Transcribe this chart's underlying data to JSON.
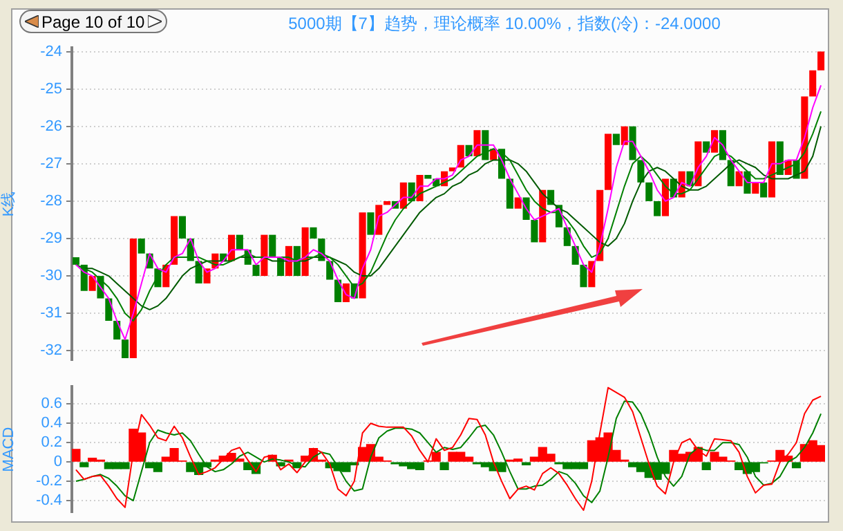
{
  "chart_data": [
    {
      "type": "candlestick",
      "title": "5000期【7】趋势，理论概率 10.00%，指数(冷)：-24.0000",
      "ylabel": "K线",
      "annotations": [
        "Page 10 of 10"
      ],
      "categories": [
        null,
        null,
        null,
        null,
        null,
        null,
        null,
        null,
        null,
        null,
        null,
        null,
        null,
        null,
        null,
        null,
        null,
        null,
        null,
        null,
        null,
        null,
        null,
        null,
        null,
        null,
        null,
        null,
        null,
        null,
        null,
        null,
        null,
        null,
        null,
        null,
        null,
        null,
        null,
        null,
        null,
        null,
        null,
        null,
        null,
        null,
        null,
        null,
        null,
        null,
        null,
        null,
        null,
        null,
        null,
        null,
        null,
        null,
        null,
        null,
        null,
        null,
        null,
        null,
        null,
        null,
        null,
        null,
        null,
        null,
        null,
        null,
        null,
        null,
        null,
        null,
        null,
        null,
        null,
        null,
        null,
        null,
        null,
        null,
        null,
        null,
        null,
        null,
        null,
        null,
        null,
        null
      ],
      "ohlc": [
        [
          -29.5,
          -29.5,
          -29.7,
          -29.7
        ],
        [
          -29.7,
          -29.7,
          -30.4,
          -30.4
        ],
        [
          -30.4,
          -30.0,
          -30.4,
          -30.0
        ],
        [
          -30.0,
          -30.0,
          -30.6,
          -30.6
        ],
        [
          -30.6,
          -30.6,
          -31.2,
          -31.2
        ],
        [
          -31.2,
          -31.2,
          -31.7,
          -31.7
        ],
        [
          -31.7,
          -31.7,
          -32.2,
          -32.2
        ],
        [
          -32.2,
          -29.0,
          -32.2,
          -29.0
        ],
        [
          -29.0,
          -29.0,
          -29.4,
          -29.4
        ],
        [
          -29.4,
          -29.4,
          -29.8,
          -29.8
        ],
        [
          -29.8,
          -29.8,
          -30.3,
          -30.3
        ],
        [
          -30.3,
          -29.7,
          -30.3,
          -29.7
        ],
        [
          -29.7,
          -28.4,
          -29.7,
          -28.4
        ],
        [
          -28.4,
          -28.4,
          -29.0,
          -29.0
        ],
        [
          -29.0,
          -29.0,
          -29.6,
          -29.6
        ],
        [
          -29.6,
          -29.6,
          -30.2,
          -30.2
        ],
        [
          -30.2,
          -29.8,
          -30.2,
          -29.8
        ],
        [
          -29.8,
          -29.4,
          -29.8,
          -29.4
        ],
        [
          -29.4,
          -29.4,
          -29.6,
          -29.6
        ],
        [
          -29.6,
          -28.9,
          -29.6,
          -28.9
        ],
        [
          -28.9,
          -28.9,
          -29.3,
          -29.3
        ],
        [
          -29.3,
          -29.3,
          -29.7,
          -29.7
        ],
        [
          -29.7,
          -29.7,
          -30.0,
          -30.0
        ],
        [
          -30.0,
          -28.9,
          -30.0,
          -28.9
        ],
        [
          -28.9,
          -28.9,
          -29.5,
          -29.5
        ],
        [
          -29.5,
          -29.5,
          -30.0,
          -30.0
        ],
        [
          -30.0,
          -29.2,
          -30.0,
          -29.2
        ],
        [
          -29.2,
          -29.2,
          -30.0,
          -30.0
        ],
        [
          -30.0,
          -28.7,
          -30.0,
          -28.7
        ],
        [
          -28.7,
          -28.7,
          -29.0,
          -29.0
        ],
        [
          -29.0,
          -29.0,
          -29.6,
          -29.6
        ],
        [
          -29.6,
          -29.6,
          -30.1,
          -30.1
        ],
        [
          -30.1,
          -30.1,
          -30.7,
          -30.7
        ],
        [
          -30.7,
          -30.2,
          -30.7,
          -30.2
        ],
        [
          -30.2,
          -30.2,
          -30.6,
          -30.6
        ],
        [
          -30.6,
          -28.3,
          -30.6,
          -28.3
        ],
        [
          -28.3,
          -28.3,
          -28.9,
          -28.9
        ],
        [
          -28.9,
          -28.1,
          -28.9,
          -28.1
        ],
        [
          -28.1,
          -28.0,
          -28.1,
          -28.0
        ],
        [
          -28.0,
          -28.0,
          -28.2,
          -28.2
        ],
        [
          -28.2,
          -27.5,
          -28.2,
          -27.5
        ],
        [
          -27.5,
          -27.5,
          -28.0,
          -28.0
        ],
        [
          -28.0,
          -27.3,
          -28.0,
          -27.3
        ],
        [
          -27.3,
          -27.3,
          -27.4,
          -27.4
        ],
        [
          -27.4,
          -27.4,
          -27.6,
          -27.6
        ],
        [
          -27.6,
          -27.2,
          -27.6,
          -27.2
        ],
        [
          -27.2,
          -27.1,
          -27.2,
          -27.1
        ],
        [
          -27.1,
          -26.5,
          -27.1,
          -26.5
        ],
        [
          -26.5,
          -26.5,
          -26.8,
          -26.8
        ],
        [
          -26.8,
          -26.1,
          -26.8,
          -26.1
        ],
        [
          -26.1,
          -26.1,
          -26.9,
          -26.9
        ],
        [
          -26.9,
          -26.6,
          -26.9,
          -26.6
        ],
        [
          -26.6,
          -26.6,
          -27.4,
          -27.4
        ],
        [
          -27.4,
          -27.4,
          -28.2,
          -28.2
        ],
        [
          -28.2,
          -27.9,
          -28.2,
          -27.9
        ],
        [
          -27.9,
          -27.9,
          -28.5,
          -28.5
        ],
        [
          -28.5,
          -28.5,
          -29.1,
          -29.1
        ],
        [
          -29.1,
          -27.7,
          -29.1,
          -27.7
        ],
        [
          -27.7,
          -27.7,
          -28.1,
          -28.1
        ],
        [
          -28.1,
          -28.1,
          -28.7,
          -28.7
        ],
        [
          -28.7,
          -28.7,
          -29.2,
          -29.2
        ],
        [
          -29.2,
          -29.2,
          -29.7,
          -29.7
        ],
        [
          -29.7,
          -29.7,
          -30.3,
          -30.3
        ],
        [
          -30.3,
          -29.6,
          -30.3,
          -29.6
        ],
        [
          -29.6,
          -27.7,
          -29.6,
          -27.7
        ],
        [
          -27.7,
          -26.2,
          -27.7,
          -26.2
        ],
        [
          -26.2,
          -26.2,
          -26.5,
          -26.5
        ],
        [
          -26.5,
          -26.0,
          -26.5,
          -26.0
        ],
        [
          -26.0,
          -26.0,
          -26.9,
          -26.9
        ],
        [
          -26.9,
          -26.9,
          -27.5,
          -27.5
        ],
        [
          -27.5,
          -27.5,
          -28.0,
          -28.0
        ],
        [
          -28.0,
          -28.0,
          -28.4,
          -28.4
        ],
        [
          -28.4,
          -27.4,
          -28.4,
          -27.4
        ],
        [
          -27.4,
          -27.4,
          -27.9,
          -27.9
        ],
        [
          -27.9,
          -27.2,
          -27.9,
          -27.2
        ],
        [
          -27.2,
          -27.2,
          -27.6,
          -27.6
        ],
        [
          -27.6,
          -26.4,
          -27.6,
          -26.4
        ],
        [
          -26.4,
          -26.4,
          -26.7,
          -26.7
        ],
        [
          -26.7,
          -26.1,
          -26.7,
          -26.1
        ],
        [
          -26.1,
          -26.1,
          -26.9,
          -26.9
        ],
        [
          -26.9,
          -26.9,
          -27.6,
          -27.6
        ],
        [
          -27.6,
          -27.2,
          -27.6,
          -27.2
        ],
        [
          -27.2,
          -27.2,
          -27.8,
          -27.8
        ],
        [
          -27.8,
          -27.5,
          -27.8,
          -27.5
        ],
        [
          -27.5,
          -27.5,
          -27.9,
          -27.9
        ],
        [
          -27.9,
          -26.4,
          -27.9,
          -26.4
        ],
        [
          -26.4,
          -26.4,
          -27.3,
          -27.3
        ],
        [
          -27.3,
          -26.9,
          -27.3,
          -26.9
        ],
        [
          -26.9,
          -26.9,
          -27.4,
          -27.4
        ],
        [
          -27.4,
          -25.2,
          -27.4,
          -25.2
        ],
        [
          -25.2,
          -24.5,
          -25.2,
          -24.5
        ],
        [
          -24.5,
          -24.0,
          -24.5,
          -24.0
        ]
      ],
      "series": [
        {
          "type": "line",
          "color": "#ff00ff",
          "values": [
            -29.7,
            -29.9,
            -30.0,
            -30.3,
            -30.6,
            -31.2,
            -31.7,
            -31.0,
            -30.2,
            -29.4,
            -29.8,
            -29.9,
            -29.5,
            -29.4,
            -29.0,
            -29.6,
            -29.9,
            -29.8,
            -29.6,
            -29.3,
            -29.3,
            -29.3,
            -29.7,
            -29.5,
            -29.5,
            -29.5,
            -29.6,
            -29.6,
            -29.5,
            -29.3,
            -29.4,
            -29.6,
            -30.1,
            -30.5,
            -30.6,
            -29.8,
            -29.3,
            -28.4,
            -28.3,
            -28.1,
            -27.9,
            -27.9,
            -27.6,
            -27.6,
            -27.4,
            -27.4,
            -27.3,
            -26.9,
            -26.8,
            -26.5,
            -26.5,
            -26.5,
            -26.9,
            -27.4,
            -27.8,
            -28.2,
            -28.5,
            -28.4,
            -28.3,
            -28.2,
            -28.7,
            -29.2,
            -29.7,
            -29.9,
            -29.2,
            -28.2,
            -27.1,
            -26.4,
            -26.4,
            -26.8,
            -27.2,
            -27.7,
            -28.0,
            -27.9,
            -27.5,
            -27.6,
            -27.1,
            -26.8,
            -26.3,
            -26.5,
            -26.9,
            -27.2,
            -27.5,
            -27.5,
            -27.5,
            -27.0,
            -27.0,
            -26.9,
            -26.9,
            -26.3,
            -25.5,
            -24.9
          ]
        },
        {
          "type": "line",
          "color": "#008000",
          "values": [
            -29.7,
            -29.8,
            -29.9,
            -30.1,
            -30.3,
            -30.6,
            -31.0,
            -31.2,
            -30.9,
            -30.4,
            -30.0,
            -29.7,
            -29.5,
            -29.5,
            -29.5,
            -29.5,
            -29.6,
            -29.7,
            -29.7,
            -29.6,
            -29.5,
            -29.4,
            -29.5,
            -29.5,
            -29.5,
            -29.5,
            -29.5,
            -29.6,
            -29.5,
            -29.5,
            -29.4,
            -29.5,
            -29.7,
            -30.0,
            -30.3,
            -30.2,
            -29.9,
            -29.4,
            -28.9,
            -28.5,
            -28.2,
            -28.0,
            -27.8,
            -27.7,
            -27.6,
            -27.5,
            -27.4,
            -27.2,
            -27.0,
            -26.8,
            -26.7,
            -26.6,
            -26.7,
            -26.9,
            -27.3,
            -27.7,
            -28.0,
            -28.2,
            -28.3,
            -28.3,
            -28.5,
            -28.8,
            -29.2,
            -29.5,
            -29.4,
            -29.0,
            -28.3,
            -27.6,
            -27.0,
            -26.8,
            -27.0,
            -27.3,
            -27.6,
            -27.8,
            -27.8,
            -27.7,
            -27.4,
            -27.1,
            -26.8,
            -26.7,
            -26.8,
            -27.0,
            -27.2,
            -27.4,
            -27.4,
            -27.3,
            -27.2,
            -27.1,
            -27.0,
            -26.7,
            -26.2,
            -25.6
          ]
        },
        {
          "type": "line",
          "color": "#005a00",
          "values": [
            -29.7,
            -29.8,
            -29.8,
            -29.9,
            -30.0,
            -30.2,
            -30.4,
            -30.6,
            -30.8,
            -30.9,
            -30.8,
            -30.6,
            -30.3,
            -30.0,
            -29.8,
            -29.7,
            -29.6,
            -29.6,
            -29.6,
            -29.6,
            -29.5,
            -29.5,
            -29.5,
            -29.5,
            -29.6,
            -29.6,
            -29.6,
            -29.6,
            -29.6,
            -29.5,
            -29.5,
            -29.5,
            -29.6,
            -29.7,
            -29.9,
            -30.0,
            -30.0,
            -29.8,
            -29.5,
            -29.2,
            -28.9,
            -28.6,
            -28.3,
            -28.1,
            -27.9,
            -27.8,
            -27.6,
            -27.5,
            -27.3,
            -27.2,
            -27.0,
            -26.9,
            -26.9,
            -26.9,
            -27.0,
            -27.2,
            -27.5,
            -27.8,
            -28.0,
            -28.2,
            -28.3,
            -28.5,
            -28.7,
            -28.9,
            -29.1,
            -29.2,
            -29.0,
            -28.6,
            -28.0,
            -27.5,
            -27.2,
            -27.1,
            -27.2,
            -27.4,
            -27.6,
            -27.7,
            -27.7,
            -27.6,
            -27.4,
            -27.2,
            -27.0,
            -26.9,
            -27.0,
            -27.1,
            -27.3,
            -27.4,
            -27.4,
            -27.4,
            -27.3,
            -27.2,
            -26.8,
            -26.0
          ]
        }
      ],
      "ylim": [
        -32.25,
        -23.9
      ],
      "yticks": [
        -32,
        -31,
        -30,
        -29,
        -28,
        -27,
        -26,
        -25,
        -24
      ],
      "grid": "y",
      "marker": "none",
      "tick_labels": "y"
    },
    {
      "type": "bar",
      "ylabel": "MACD",
      "categories": [
        null,
        null,
        null,
        null,
        null,
        null,
        null,
        null,
        null,
        null,
        null,
        null,
        null,
        null,
        null,
        null,
        null,
        null,
        null,
        null,
        null,
        null,
        null,
        null,
        null,
        null,
        null,
        null,
        null,
        null,
        null,
        null,
        null,
        null,
        null,
        null,
        null,
        null,
        null,
        null,
        null,
        null,
        null,
        null,
        null,
        null,
        null,
        null,
        null,
        null,
        null,
        null,
        null,
        null,
        null,
        null,
        null,
        null,
        null,
        null,
        null,
        null,
        null,
        null,
        null,
        null,
        null,
        null,
        null,
        null,
        null,
        null,
        null,
        null,
        null,
        null,
        null,
        null,
        null,
        null,
        null,
        null,
        null,
        null,
        null,
        null,
        null,
        null,
        null,
        null,
        null,
        null
      ],
      "series": [
        {
          "type": "bar",
          "values": [
            0.13,
            -0.05,
            0.04,
            0.02,
            -0.07,
            -0.07,
            -0.07,
            0.34,
            0.3,
            -0.06,
            -0.1,
            0.05,
            0.14,
            0.01,
            -0.1,
            -0.13,
            -0.05,
            0.02,
            0.06,
            0.09,
            0.03,
            -0.08,
            -0.12,
            null,
            0.07,
            -0.04,
            0.02,
            -0.06,
            0.06,
            0.14,
            0.02,
            -0.06,
            -0.09,
            -0.1,
            -0.03,
            0.15,
            0.18,
            0.05,
            0.01,
            -0.02,
            -0.04,
            -0.07,
            -0.08,
            0.01,
            0.1,
            -0.08,
            0.1,
            0.1,
            0.05,
            -0.02,
            -0.05,
            -0.09,
            -0.1,
            0.02,
            0.03,
            -0.03,
            0.05,
            0.15,
            0.08,
            -0.02,
            -0.07,
            -0.07,
            -0.07,
            0.22,
            0.25,
            0.3,
            0.12,
            0.02,
            -0.05,
            -0.1,
            -0.16,
            -0.18,
            -0.12,
            0.12,
            0.08,
            0.1,
            0.15,
            -0.08,
            0.1,
            0.05,
            0.01,
            -0.08,
            -0.12,
            -0.1,
            -0.01,
            0.01,
            0.12,
            0.06,
            -0.06,
            0.18,
            0.22,
            0.17
          ],
          "colors": [
            "#ff0000",
            "#008000",
            "#ff0000",
            "#ff0000",
            "#008000",
            "#008000",
            "#008000",
            "#ff0000",
            "#ff0000",
            "#008000",
            "#008000",
            "#ff0000",
            "#ff0000",
            "#ff0000",
            "#008000",
            "#008000",
            "#008000",
            "#ff0000",
            "#ff0000",
            "#ff0000",
            "#ff0000",
            "#008000",
            "#008000",
            "#ff0000",
            "#ff0000",
            "#008000",
            "#ff0000",
            "#008000",
            "#ff0000",
            "#ff0000",
            "#ff0000",
            "#008000",
            "#008000",
            "#008000",
            "#008000",
            "#ff0000",
            "#ff0000",
            "#ff0000",
            "#ff0000",
            "#008000",
            "#008000",
            "#008000",
            "#008000",
            "#ff0000",
            "#ff0000",
            "#008000",
            "#ff0000",
            "#ff0000",
            "#ff0000",
            "#008000",
            "#008000",
            "#008000",
            "#008000",
            "#ff0000",
            "#ff0000",
            "#008000",
            "#ff0000",
            "#ff0000",
            "#ff0000",
            "#008000",
            "#008000",
            "#008000",
            "#008000",
            "#ff0000",
            "#ff0000",
            "#ff0000",
            "#ff0000",
            "#ff0000",
            "#008000",
            "#008000",
            "#008000",
            "#008000",
            "#008000",
            "#ff0000",
            "#ff0000",
            "#ff0000",
            "#ff0000",
            "#008000",
            "#ff0000",
            "#ff0000",
            "#ff0000",
            "#008000",
            "#008000",
            "#008000",
            "#008000",
            "#ff0000",
            "#ff0000",
            "#ff0000",
            "#008000",
            "#ff0000",
            "#ff0000",
            "#ff0000"
          ]
        },
        {
          "type": "line",
          "color": "#ff0000",
          "values": [
            -0.08,
            -0.18,
            -0.15,
            -0.14,
            -0.25,
            -0.38,
            -0.47,
            0.1,
            0.49,
            0.38,
            0.25,
            0.22,
            0.37,
            0.25,
            0.05,
            -0.13,
            -0.1,
            -0.06,
            0.03,
            0.12,
            0.15,
            0.02,
            -0.1,
            0.05,
            0.07,
            -0.08,
            -0.02,
            -0.11,
            0.0,
            0.14,
            0.1,
            -0.02,
            -0.28,
            -0.35,
            -0.2,
            0.3,
            0.4,
            0.37,
            0.36,
            0.36,
            0.36,
            0.27,
            0.12,
            0.0,
            0.24,
            0.12,
            0.15,
            0.28,
            0.45,
            0.44,
            0.28,
            0.0,
            -0.2,
            -0.38,
            -0.28,
            -0.25,
            -0.29,
            -0.12,
            -0.06,
            -0.12,
            -0.24,
            -0.38,
            -0.5,
            -0.2,
            0.3,
            0.77,
            0.72,
            0.67,
            0.52,
            0.25,
            -0.02,
            -0.25,
            -0.33,
            0.0,
            0.2,
            0.24,
            0.12,
            0.06,
            0.24,
            0.23,
            0.22,
            0.1,
            -0.15,
            -0.32,
            -0.24,
            -0.23,
            0.0,
            0.08,
            0.2,
            0.5,
            0.64,
            0.68
          ]
        },
        {
          "type": "line",
          "color": "#008000",
          "values": [
            -0.2,
            -0.18,
            -0.15,
            -0.13,
            -0.17,
            -0.25,
            -0.35,
            -0.4,
            -0.1,
            0.2,
            0.33,
            0.3,
            0.28,
            0.3,
            0.22,
            0.08,
            -0.05,
            -0.1,
            -0.08,
            -0.02,
            0.06,
            0.1,
            0.05,
            0.0,
            0.03,
            0.02,
            0.0,
            -0.04,
            -0.05,
            0.05,
            0.1,
            0.08,
            -0.05,
            -0.2,
            -0.3,
            -0.28,
            0.05,
            0.25,
            0.32,
            0.35,
            0.35,
            0.34,
            0.3,
            0.2,
            0.1,
            0.15,
            0.13,
            0.15,
            0.25,
            0.36,
            0.38,
            0.28,
            0.1,
            -0.1,
            -0.28,
            -0.28,
            -0.25,
            -0.24,
            -0.18,
            -0.1,
            -0.13,
            -0.22,
            -0.35,
            -0.42,
            -0.3,
            0.05,
            0.45,
            0.63,
            0.62,
            0.5,
            0.3,
            0.05,
            -0.15,
            -0.25,
            -0.15,
            0.08,
            0.15,
            0.12,
            0.12,
            0.2,
            0.2,
            0.18,
            0.05,
            -0.15,
            -0.24,
            -0.22,
            -0.15,
            0.0,
            0.05,
            0.15,
            0.3,
            0.5
          ]
        }
      ],
      "ylim": [
        -0.52,
        0.78
      ],
      "yticks": [
        -0.4,
        -0.2,
        0,
        0.2,
        0.4,
        0.6
      ],
      "grid": "y",
      "marker": "none",
      "tick_labels": "y"
    }
  ]
}
